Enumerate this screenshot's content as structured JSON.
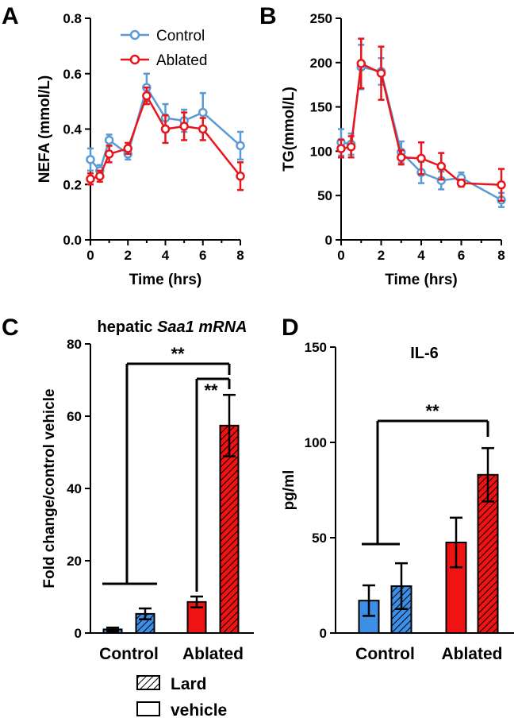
{
  "colors": {
    "control": "#5b9bd5",
    "ablated": "#e8161b",
    "control_bar": "#3d8ee6",
    "ablated_bar": "#ef1313",
    "axis": "#000000"
  },
  "chart_data": [
    {
      "panel": "A",
      "type": "line",
      "xlabel": "Time (hrs)",
      "ylabel": "NEFA (mmol/L)",
      "xlim": [
        0,
        8
      ],
      "ylim": [
        0,
        0.8
      ],
      "xticks": [
        0,
        2,
        4,
        6,
        8
      ],
      "xtick_labels": [
        "0",
        "2",
        "4",
        "6",
        "8"
      ],
      "yticks": [
        0,
        0.2,
        0.4,
        0.6,
        0.8
      ],
      "ytick_labels": [
        "0.0",
        "0.2",
        "0.4",
        "0.6",
        "0.8"
      ],
      "legend": [
        "Control",
        "Ablated"
      ],
      "series": [
        {
          "name": "Control",
          "x": [
            0,
            0.5,
            1,
            2,
            3,
            4,
            5,
            6,
            8
          ],
          "y": [
            0.29,
            0.25,
            0.36,
            0.31,
            0.55,
            0.44,
            0.43,
            0.46,
            0.34
          ],
          "err": [
            0.04,
            0.02,
            0.02,
            0.02,
            0.05,
            0.05,
            0.04,
            0.07,
            0.05
          ]
        },
        {
          "name": "Ablated",
          "x": [
            0,
            0.5,
            1,
            2,
            3,
            4,
            5,
            6,
            8
          ],
          "y": [
            0.22,
            0.23,
            0.31,
            0.33,
            0.52,
            0.4,
            0.41,
            0.4,
            0.23
          ],
          "err": [
            0.02,
            0.02,
            0.03,
            0.02,
            0.03,
            0.05,
            0.05,
            0.04,
            0.05
          ]
        }
      ]
    },
    {
      "panel": "B",
      "type": "line",
      "xlabel": "Time (hrs)",
      "ylabel": "TG(mmol/L)",
      "xlim": [
        0,
        8
      ],
      "ylim": [
        0,
        250
      ],
      "xticks": [
        0,
        2,
        4,
        6,
        8
      ],
      "xtick_labels": [
        "0",
        "2",
        "4",
        "6",
        "8"
      ],
      "yticks": [
        0,
        50,
        100,
        150,
        200,
        250
      ],
      "ytick_labels": [
        "0",
        "50",
        "100",
        "150",
        "200",
        "250"
      ],
      "series": [
        {
          "name": "Control",
          "x": [
            0,
            0.5,
            1,
            2,
            3,
            4,
            5,
            6,
            8
          ],
          "y": [
            110,
            108,
            195,
            190,
            99,
            76,
            67,
            70,
            45
          ],
          "err": [
            15,
            12,
            25,
            15,
            12,
            12,
            10,
            6,
            8
          ]
        },
        {
          "name": "Ablated",
          "x": [
            0,
            0.5,
            1,
            2,
            3,
            4,
            5,
            6,
            8
          ],
          "y": [
            103,
            105,
            199,
            188,
            93,
            92,
            83,
            64,
            62
          ],
          "err": [
            10,
            12,
            28,
            30,
            8,
            18,
            15,
            4,
            18
          ]
        }
      ]
    },
    {
      "panel": "C",
      "type": "bar",
      "title_plain": "hepatic ",
      "title_italic": "Saa1 mRNA",
      "ylabel": "Fold change/control vehicle",
      "ylim": [
        0,
        80
      ],
      "yticks": [
        0,
        20,
        40,
        60,
        80
      ],
      "ytick_labels": [
        "0",
        "20",
        "40",
        "60",
        "80"
      ],
      "categories": [
        "Control",
        "Ablated"
      ],
      "series": [
        {
          "name": "vehicle",
          "values": [
            1,
            8.6
          ],
          "err": [
            0.5,
            1.5
          ]
        },
        {
          "name": "Lard",
          "values": [
            5.3,
            57.4
          ],
          "err": [
            1.5,
            8.5
          ]
        }
      ],
      "significance": [
        "**",
        "**"
      ]
    },
    {
      "panel": "D",
      "type": "bar",
      "title": "IL-6",
      "ylabel": "pg/ml",
      "ylim": [
        0,
        150
      ],
      "yticks": [
        0,
        50,
        100,
        150
      ],
      "ytick_labels": [
        "0",
        "50",
        "100",
        "150"
      ],
      "categories": [
        "Control",
        "Ablated"
      ],
      "series": [
        {
          "name": "vehicle",
          "values": [
            17,
            47.5
          ],
          "err": [
            8,
            13
          ]
        },
        {
          "name": "Lard",
          "values": [
            24.6,
            83
          ],
          "err": [
            12,
            14
          ]
        }
      ],
      "significance": [
        "**"
      ]
    }
  ],
  "bar_legend": [
    "Lard",
    "vehicle"
  ]
}
